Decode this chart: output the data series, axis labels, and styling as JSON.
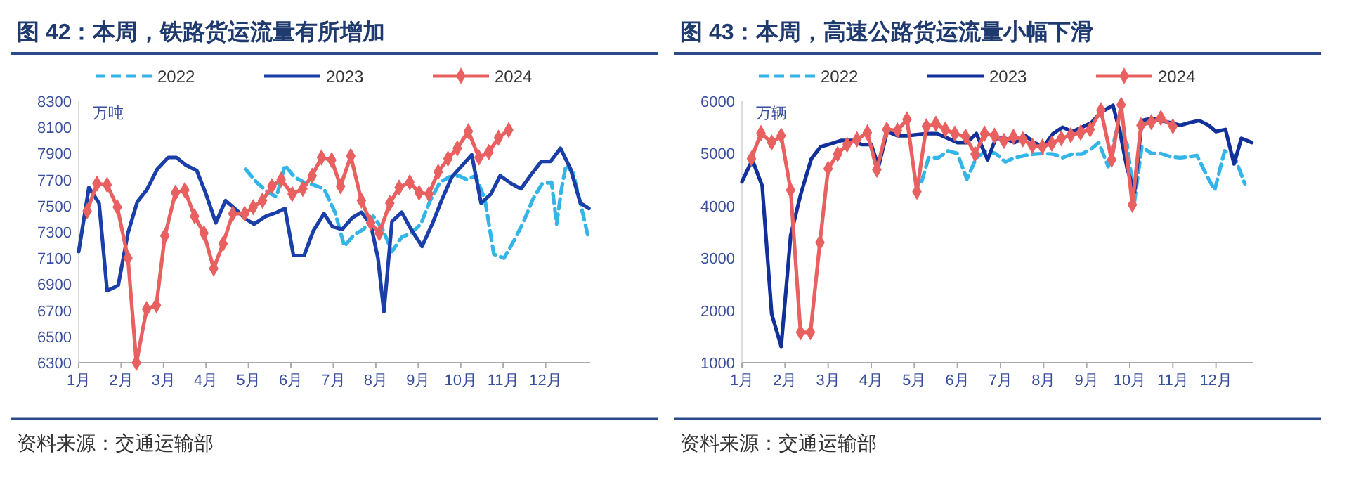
{
  "chart_data": [
    {
      "type": "line",
      "title": "图 42：本周，铁路货运流量有所增加",
      "ylabel": "万吨",
      "annotations": [
        "资料来源：交通运输部"
      ],
      "legend": "top",
      "xlim": [
        1,
        13.05
      ],
      "ylim": [
        6300,
        8300
      ],
      "yticks": [
        6300,
        6500,
        6700,
        6900,
        7100,
        7300,
        7500,
        7700,
        7900,
        8100,
        8300
      ],
      "xticks": [
        {
          "value": 1,
          "label": "1月"
        },
        {
          "value": 2,
          "label": "2月"
        },
        {
          "value": 3,
          "label": "3月"
        },
        {
          "value": 4,
          "label": "4月"
        },
        {
          "value": 5,
          "label": "5月"
        },
        {
          "value": 6,
          "label": "6月"
        },
        {
          "value": 7,
          "label": "7月"
        },
        {
          "value": 8,
          "label": "8月"
        },
        {
          "value": 9,
          "label": "9月"
        },
        {
          "value": 10,
          "label": "10月"
        },
        {
          "value": 11,
          "label": "11月"
        },
        {
          "value": 12,
          "label": "12月"
        }
      ],
      "series": [
        {
          "name": "2022",
          "color": "#33b5e8",
          "line_style": "dashed",
          "marker": "none",
          "x": [
            4.93,
            5.19,
            5.47,
            5.66,
            5.86,
            6.08,
            6.31,
            6.53,
            6.78,
            7.04,
            7.26,
            7.49,
            7.71,
            7.94,
            8.16,
            8.38,
            8.61,
            8.83,
            9.06,
            9.28,
            9.51,
            9.73,
            9.96,
            10.15,
            10.35,
            10.57,
            10.78,
            11.02,
            11.25,
            11.47,
            11.7,
            11.92,
            12.14,
            12.26,
            12.37,
            12.48,
            12.65,
            12.82,
            12.99
          ],
          "values": [
            7780,
            7680,
            7600,
            7570,
            7810,
            7720,
            7680,
            7660,
            7630,
            7450,
            7190,
            7280,
            7320,
            7420,
            7320,
            7150,
            7260,
            7290,
            7360,
            7540,
            7680,
            7720,
            7730,
            7700,
            7730,
            7550,
            7130,
            7100,
            7230,
            7370,
            7550,
            7670,
            7680,
            7360,
            7620,
            7810,
            7750,
            7520,
            7280
          ]
        },
        {
          "name": "2023",
          "color": "#1a3fa8",
          "line_style": "solid",
          "marker": "none",
          "x": [
            1.0,
            1.24,
            1.48,
            1.67,
            1.93,
            2.16,
            2.38,
            2.6,
            2.85,
            3.11,
            3.3,
            3.53,
            3.78,
            4.0,
            4.23,
            4.46,
            4.71,
            4.93,
            5.13,
            5.41,
            5.67,
            5.86,
            6.06,
            6.31,
            6.53,
            6.78,
            6.98,
            7.21,
            7.45,
            7.66,
            7.88,
            8.05,
            8.19,
            8.38,
            8.61,
            8.83,
            9.09,
            9.34,
            9.56,
            9.79,
            10.01,
            10.26,
            10.48,
            10.71,
            10.93,
            11.19,
            11.42,
            11.64,
            11.9,
            12.12,
            12.35,
            12.59,
            12.82,
            13.02
          ],
          "values": [
            7150,
            7640,
            7520,
            6850,
            6890,
            7290,
            7530,
            7620,
            7780,
            7870,
            7870,
            7810,
            7770,
            7590,
            7370,
            7540,
            7470,
            7400,
            7360,
            7420,
            7450,
            7480,
            7120,
            7120,
            7310,
            7440,
            7340,
            7320,
            7410,
            7450,
            7360,
            7100,
            6690,
            7380,
            7450,
            7320,
            7190,
            7370,
            7550,
            7720,
            7800,
            7890,
            7520,
            7590,
            7730,
            7670,
            7630,
            7730,
            7840,
            7840,
            7940,
            7780,
            7520,
            7480
          ]
        },
        {
          "name": "2024",
          "color": "#e8605f",
          "line_style": "solid",
          "marker": "diamond",
          "x": [
            1.2,
            1.43,
            1.67,
            1.91,
            2.16,
            2.36,
            2.6,
            2.83,
            3.03,
            3.28,
            3.5,
            3.73,
            3.95,
            4.18,
            4.4,
            4.63,
            4.91,
            5.11,
            5.33,
            5.55,
            5.77,
            6.03,
            6.28,
            6.5,
            6.72,
            6.96,
            7.17,
            7.41,
            7.66,
            7.88,
            8.08,
            8.33,
            8.55,
            8.8,
            9.02,
            9.25,
            9.47,
            9.7,
            9.92,
            10.18,
            10.43,
            10.66,
            10.89,
            11.13
          ],
          "values": [
            7460,
            7670,
            7660,
            7490,
            7100,
            6300,
            6710,
            6740,
            7270,
            7600,
            7620,
            7420,
            7290,
            7020,
            7210,
            7440,
            7440,
            7490,
            7540,
            7650,
            7700,
            7590,
            7630,
            7730,
            7870,
            7850,
            7650,
            7880,
            7540,
            7370,
            7290,
            7520,
            7640,
            7680,
            7600,
            7590,
            7760,
            7860,
            7940,
            8070,
            7870,
            7910,
            8020,
            8080
          ]
        }
      ]
    },
    {
      "type": "line",
      "title": "图 43：本周，高速公路货运流量小幅下滑",
      "ylabel": "万辆",
      "annotations": [
        "资料来源：交通运输部"
      ],
      "legend": "top",
      "xlim": [
        1,
        12.87
      ],
      "ylim": [
        1000,
        6000
      ],
      "yticks": [
        1000,
        2000,
        3000,
        4000,
        5000,
        6000
      ],
      "xticks": [
        {
          "value": 1,
          "label": "1月"
        },
        {
          "value": 2,
          "label": "2月"
        },
        {
          "value": 3,
          "label": "3月"
        },
        {
          "value": 4,
          "label": "4月"
        },
        {
          "value": 5,
          "label": "5月"
        },
        {
          "value": 6,
          "label": "6月"
        },
        {
          "value": 7,
          "label": "7月"
        },
        {
          "value": 8,
          "label": "8月"
        },
        {
          "value": 9,
          "label": "9月"
        },
        {
          "value": 10,
          "label": "10月"
        },
        {
          "value": 11,
          "label": "11月"
        },
        {
          "value": 12,
          "label": "12月"
        }
      ],
      "series": [
        {
          "name": "2022",
          "color": "#33b5e8",
          "line_style": "dashed",
          "marker": "none",
          "x": [
            5.17,
            5.33,
            5.56,
            5.78,
            6.0,
            6.22,
            6.44,
            6.67,
            6.89,
            7.11,
            7.33,
            7.56,
            7.78,
            8.0,
            8.22,
            8.44,
            8.67,
            8.89,
            9.11,
            9.28,
            9.5,
            9.72,
            9.94,
            10.11,
            10.28,
            10.5,
            10.72,
            10.94,
            11.17,
            11.39,
            11.56,
            11.78,
            11.97,
            12.2,
            12.42,
            12.67
          ],
          "values": [
            4460,
            4920,
            4920,
            5050,
            5000,
            4510,
            4920,
            5050,
            5000,
            4840,
            4920,
            4960,
            4990,
            5000,
            4990,
            4920,
            4990,
            4990,
            5090,
            5210,
            4750,
            5540,
            5170,
            4090,
            5130,
            5000,
            5000,
            4940,
            4920,
            4940,
            4960,
            4590,
            4300,
            5050,
            4960,
            4420
          ]
        },
        {
          "name": "2023",
          "color": "#12309a",
          "line_style": "solid",
          "marker": "none",
          "x": [
            1.0,
            1.24,
            1.47,
            1.69,
            1.91,
            2.13,
            2.36,
            2.61,
            2.83,
            3.08,
            3.31,
            3.56,
            3.78,
            4.0,
            4.17,
            4.37,
            4.61,
            4.83,
            5.06,
            5.28,
            5.53,
            5.78,
            6.0,
            6.22,
            6.44,
            6.7,
            6.89,
            7.11,
            7.33,
            7.58,
            7.78,
            8.0,
            8.22,
            8.44,
            8.67,
            8.89,
            9.11,
            9.33,
            9.61,
            9.78,
            9.94,
            10.11,
            10.28,
            10.5,
            10.72,
            10.94,
            11.17,
            11.39,
            11.61,
            11.83,
            12.0,
            12.22,
            12.42,
            12.59,
            12.83
          ],
          "values": [
            4460,
            4880,
            4380,
            1930,
            1310,
            3430,
            4210,
            4900,
            5130,
            5190,
            5250,
            5250,
            5170,
            5170,
            4750,
            5420,
            5340,
            5340,
            null,
            5380,
            5380,
            5290,
            5210,
            5210,
            5380,
            4880,
            5290,
            5290,
            5210,
            5340,
            5210,
            5130,
            5380,
            5500,
            5420,
            5500,
            5590,
            5790,
            5920,
            5380,
            4710,
            4260,
            5630,
            5670,
            5630,
            5590,
            5540,
            5590,
            5630,
            5540,
            5420,
            5460,
            4800,
            5290,
            5210
          ]
        },
        {
          "name": "2024",
          "color": "#e8605f",
          "line_style": "solid",
          "marker": "diamond",
          "x": [
            1.22,
            1.44,
            1.69,
            1.91,
            2.13,
            2.36,
            2.59,
            2.81,
            3.0,
            3.22,
            3.44,
            3.67,
            3.91,
            4.13,
            4.36,
            4.61,
            4.83,
            5.06,
            5.28,
            5.5,
            5.72,
            5.94,
            6.19,
            6.41,
            6.63,
            6.86,
            7.08,
            7.3,
            7.52,
            7.74,
            7.97,
            8.19,
            8.41,
            8.63,
            8.86,
            9.08,
            9.33,
            9.58,
            9.8,
            10.06,
            10.26,
            10.5,
            10.72,
            11.0
          ],
          "values": [
            4900,
            5390,
            5210,
            5340,
            4300,
            1580,
            1580,
            3300,
            4710,
            4990,
            5170,
            5270,
            5400,
            4690,
            5460,
            5440,
            5650,
            4270,
            5520,
            5570,
            5460,
            5380,
            5320,
            4990,
            5380,
            5340,
            5240,
            5320,
            5270,
            5150,
            5130,
            5190,
            5290,
            5350,
            5400,
            5460,
            5830,
            4880,
            5930,
            4020,
            5540,
            5600,
            5680,
            5520
          ]
        }
      ]
    }
  ]
}
